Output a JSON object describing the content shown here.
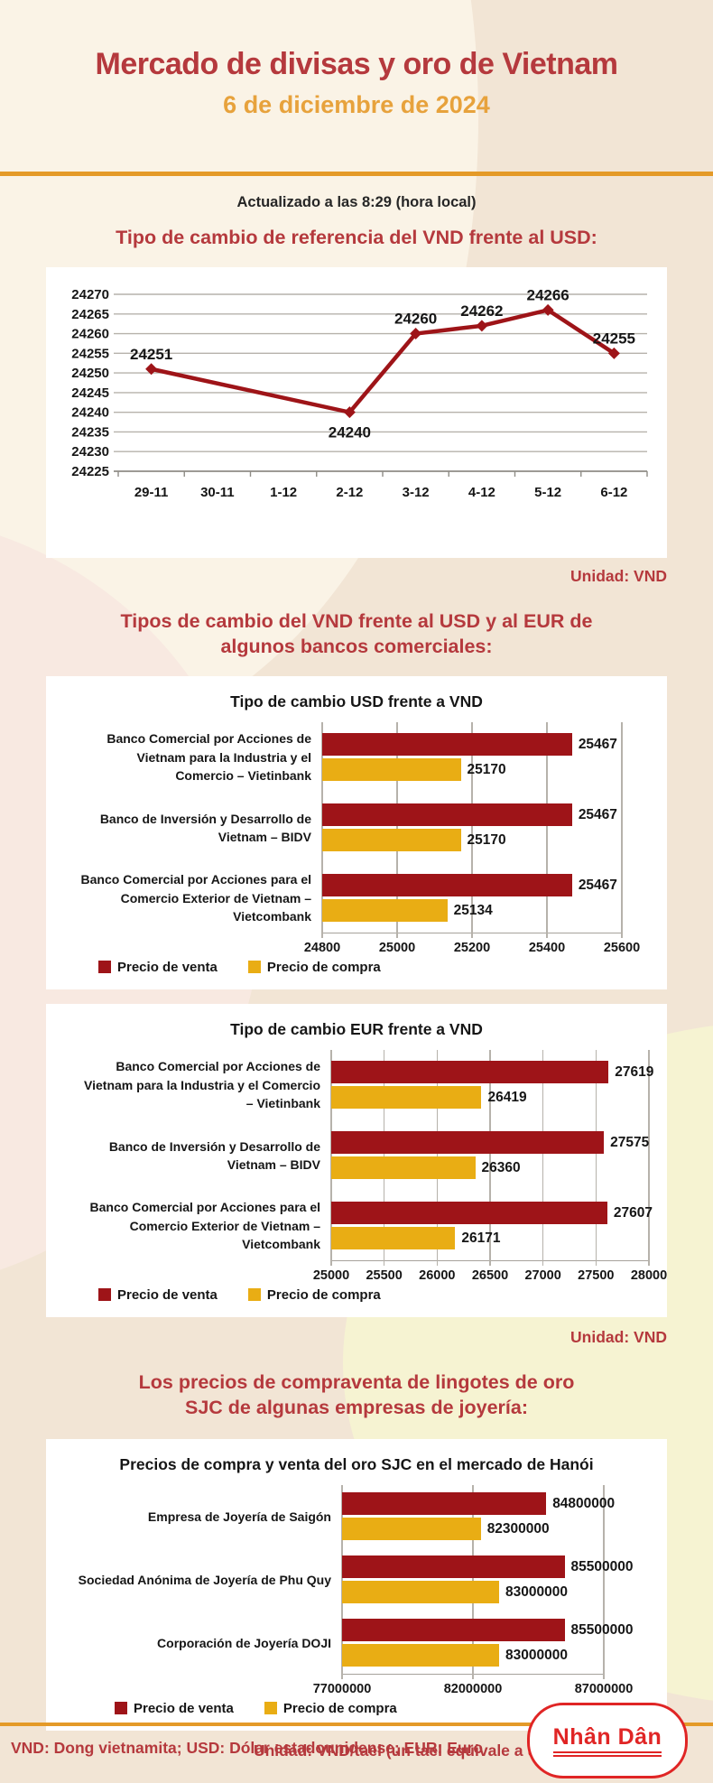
{
  "header": {
    "title": "Mercado de divisas y oro de Vietnam",
    "subtitle": "6 de diciembre de 2024",
    "updated": "Actualizado a las 8:29 (hora local)"
  },
  "sections": {
    "reference": {
      "heading": "Tipo de cambio de referencia del VND frente al USD:",
      "unit": "Unidad: VND"
    },
    "banks": {
      "heading": "Tipos de cambio del VND frente al USD y al EUR de\nalgunos bancos comerciales:",
      "unit": "Unidad: VND"
    },
    "gold": {
      "heading": "Los precios de compraventa de lingotes de oro\nSJC de algunas empresas de joyería:",
      "unit": "Unidad: VND/tael (un tael equivale a unos 37,5 gramos)"
    }
  },
  "legend": {
    "sell": "Precio de venta",
    "buy": "Precio de compra"
  },
  "footer": {
    "abbreviations": "VND: Dong vietnamita; USD: Dólar estadounidense; EUR: Euro",
    "logo": "Nhân Dân"
  },
  "colors": {
    "sell": "#9E1418",
    "buy": "#E9AD14",
    "heading_red": "#B5393D",
    "subtitle_gold": "#E7A23C",
    "divider_orange": "#E49A28",
    "logo_red": "#E02525",
    "gridline_gray": "#B6B2AB"
  },
  "chart_data": [
    {
      "type": "line",
      "title": "Tipo de cambio de referencia del VND frente al USD:",
      "categories": [
        "29-11",
        "30-11",
        "1-12",
        "2-12",
        "3-12",
        "4-12",
        "5-12",
        "6-12"
      ],
      "points": [
        {
          "x": "29-11",
          "y": 24251
        },
        {
          "x": "2-12",
          "y": 24240
        },
        {
          "x": "3-12",
          "y": 24260
        },
        {
          "x": "4-12",
          "y": 24262
        },
        {
          "x": "5-12",
          "y": 24266
        },
        {
          "x": "6-12",
          "y": 24255
        }
      ],
      "ylim": [
        24225,
        24270
      ],
      "ytick_step": 5,
      "grid": true,
      "line_color": "#9E1418",
      "unit": "Unidad: VND"
    },
    {
      "type": "bar",
      "orientation": "horizontal",
      "title": "Tipo de cambio USD frente a VND",
      "categories": [
        "Banco Comercial por Acciones de\nVietnam para la Industria y el\nComercio – Vietinbank",
        "Banco de Inversión y Desarrollo de\nVietnam – BIDV",
        "Banco Comercial por Acciones para el\nComercio Exterior de Vietnam –\nVietcombank"
      ],
      "series": [
        {
          "name": "Precio de venta",
          "color": "#9E1418",
          "values": [
            25467,
            25467,
            25467
          ]
        },
        {
          "name": "Precio de compra",
          "color": "#E9AD14",
          "values": [
            25170,
            25170,
            25134
          ]
        }
      ],
      "xlim": [
        24800,
        25600
      ],
      "xticks": [
        24800,
        25000,
        25200,
        25400,
        25600
      ],
      "grid": true,
      "legend_position": "bottom"
    },
    {
      "type": "bar",
      "orientation": "horizontal",
      "title": "Tipo de cambio EUR frente a VND",
      "categories": [
        "Banco Comercial por Acciones de\nVietnam para la Industria y el Comercio\n– Vietinbank",
        "Banco de Inversión y Desarrollo de\nVietnam – BIDV",
        "Banco Comercial por Acciones para el\nComercio Exterior de Vietnam –\nVietcombank"
      ],
      "series": [
        {
          "name": "Precio de venta",
          "color": "#9E1418",
          "values": [
            27619,
            27575,
            27607
          ]
        },
        {
          "name": "Precio de compra",
          "color": "#E9AD14",
          "values": [
            26419,
            26360,
            26171
          ]
        }
      ],
      "xlim": [
        25000,
        28000
      ],
      "xticks": [
        25000,
        25500,
        26000,
        26500,
        27000,
        27500,
        28000
      ],
      "grid": true,
      "legend_position": "bottom"
    },
    {
      "type": "bar",
      "orientation": "horizontal",
      "title": "Precios de compra y venta del oro SJC en el mercado de Hanói",
      "categories": [
        "Empresa de Joyería de Saigón",
        "Sociedad Anónima de Joyería de Phu Quy",
        "Corporación de Joyería DOJI"
      ],
      "series": [
        {
          "name": "Precio de venta",
          "color": "#9E1418",
          "values": [
            84800000,
            85500000,
            85500000
          ]
        },
        {
          "name": "Precio de compra",
          "color": "#E9AD14",
          "values": [
            82300000,
            83000000,
            83000000
          ]
        }
      ],
      "xlim": [
        77000000,
        87000000
      ],
      "xticks": [
        77000000,
        82000000,
        87000000
      ],
      "grid": true,
      "legend_position": "bottom"
    }
  ]
}
